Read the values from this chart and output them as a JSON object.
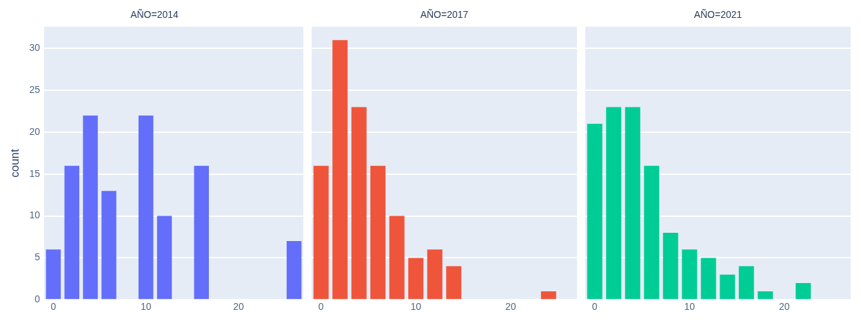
{
  "chart_data": [
    {
      "type": "histogram",
      "title": "AÑO=2014",
      "ylabel": "count",
      "bins": [
        -1,
        1,
        3,
        5,
        7,
        9,
        11,
        13,
        15,
        17,
        19,
        21,
        23,
        25,
        27
      ],
      "series": [
        {
          "color": "#636efa",
          "values": [
            6,
            16,
            22,
            13,
            0,
            22,
            10,
            0,
            16,
            0,
            0,
            0,
            0,
            7
          ]
        }
      ],
      "xlim": [
        -1,
        27
      ],
      "xticks": [
        0,
        10,
        20
      ],
      "ylim": [
        0,
        32.6
      ],
      "yticks": [
        0,
        5,
        10,
        15,
        20,
        25,
        30
      ],
      "grid": "y"
    },
    {
      "type": "histogram",
      "title": "AÑO=2017",
      "bins": [
        -1,
        1,
        3,
        5,
        7,
        9,
        11,
        13,
        15,
        17,
        19,
        21,
        23,
        25,
        27
      ],
      "series": [
        {
          "color": "#ef553b",
          "values": [
            16,
            31,
            23,
            16,
            10,
            5,
            6,
            4,
            0,
            0,
            0,
            0,
            1,
            0
          ]
        }
      ],
      "xlim": [
        -1,
        27
      ],
      "xticks": [
        0,
        10,
        20
      ],
      "ylim": [
        0,
        32.6
      ],
      "yticks": [
        0,
        5,
        10,
        15,
        20,
        25,
        30
      ],
      "grid": "y",
      "tick_labels": "x"
    },
    {
      "type": "histogram",
      "title": "AÑO=2021",
      "bins": [
        -1,
        1,
        3,
        5,
        7,
        9,
        11,
        13,
        15,
        17,
        19,
        21,
        23,
        25,
        27
      ],
      "series": [
        {
          "color": "#00cc96",
          "values": [
            21,
            23,
            23,
            16,
            8,
            6,
            5,
            3,
            4,
            1,
            0,
            2,
            0,
            0
          ]
        }
      ],
      "xlim": [
        -1,
        27
      ],
      "xticks": [
        0,
        10,
        20
      ],
      "ylim": [
        0,
        32.6
      ],
      "yticks": [
        0,
        5,
        10,
        15,
        20,
        25,
        30
      ],
      "grid": "y",
      "tick_labels": "x"
    }
  ]
}
